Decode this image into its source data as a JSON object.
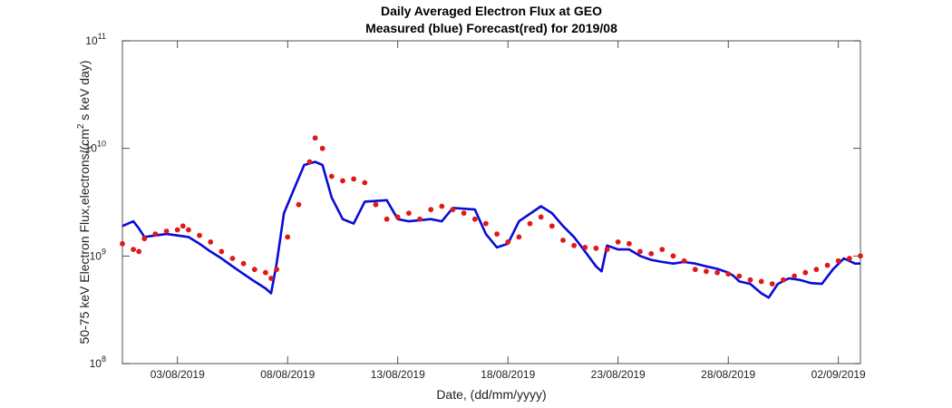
{
  "chart_data": {
    "type": "line",
    "title": "Daily Averaged Electron Flux at GEO",
    "subtitle": "Measured (blue) Forecast(red) for 2019/08",
    "xlabel": "Date, (dd/mm/yyyy)",
    "ylabel": {
      "prefix": "50-75 keV Electron Flux,electrons/(cm",
      "superscript": "2",
      "suffix": " s keV day)"
    },
    "x_range": [
      "2019-07-31T12:00",
      "2019-09-03T00:00"
    ],
    "y_scale": "log",
    "ylim": [
      100000000,
      100000000000
    ],
    "grid": false,
    "x_ticks": [
      {
        "date": "2019-08-03",
        "label": "03/08/2019"
      },
      {
        "date": "2019-08-08",
        "label": "08/08/2019"
      },
      {
        "date": "2019-08-13",
        "label": "13/08/2019"
      },
      {
        "date": "2019-08-18",
        "label": "18/08/2019"
      },
      {
        "date": "2019-08-23",
        "label": "23/08/2019"
      },
      {
        "date": "2019-08-28",
        "label": "28/08/2019"
      },
      {
        "date": "2019-09-02",
        "label": "02/09/2019"
      }
    ],
    "y_ticks": [
      {
        "value": 100000000,
        "base": "10",
        "exponent": "8"
      },
      {
        "value": 1000000000,
        "base": "10",
        "exponent": "9"
      },
      {
        "value": 10000000000,
        "base": "10",
        "exponent": "10"
      },
      {
        "value": 100000000000,
        "base": "10",
        "exponent": "11"
      }
    ],
    "series": [
      {
        "color": "#0a0ad8",
        "style": "line",
        "points": [
          [
            "2019-07-31T12:00",
            1900000000.0
          ],
          [
            "2019-08-01T00:00",
            2100000000.0
          ],
          [
            "2019-08-01T06:00",
            1800000000.0
          ],
          [
            "2019-08-01T12:00",
            1500000000.0
          ],
          [
            "2019-08-02T00:00",
            1550000000.0
          ],
          [
            "2019-08-02T12:00",
            1600000000.0
          ],
          [
            "2019-08-03T00:00",
            1550000000.0
          ],
          [
            "2019-08-03T12:00",
            1500000000.0
          ],
          [
            "2019-08-04T00:00",
            1300000000.0
          ],
          [
            "2019-08-04T12:00",
            1100000000.0
          ],
          [
            "2019-08-05T00:00",
            950000000.0
          ],
          [
            "2019-08-05T12:00",
            800000000.0
          ],
          [
            "2019-08-06T00:00",
            680000000.0
          ],
          [
            "2019-08-06T12:00",
            580000000.0
          ],
          [
            "2019-08-07T00:00",
            500000000.0
          ],
          [
            "2019-08-07T06:00",
            450000000.0
          ],
          [
            "2019-08-07T12:00",
            850000000.0
          ],
          [
            "2019-08-07T20:00",
            2500000000.0
          ],
          [
            "2019-08-08T06:00",
            4000000000.0
          ],
          [
            "2019-08-08T18:00",
            7000000000.0
          ],
          [
            "2019-08-09T06:00",
            7500000000.0
          ],
          [
            "2019-08-09T14:00",
            7000000000.0
          ],
          [
            "2019-08-10T00:00",
            3500000000.0
          ],
          [
            "2019-08-10T12:00",
            2200000000.0
          ],
          [
            "2019-08-11T00:00",
            2000000000.0
          ],
          [
            "2019-08-11T12:00",
            3200000000.0
          ],
          [
            "2019-08-12T12:00",
            3300000000.0
          ],
          [
            "2019-08-13T00:00",
            2200000000.0
          ],
          [
            "2019-08-13T12:00",
            2100000000.0
          ],
          [
            "2019-08-14T12:00",
            2200000000.0
          ],
          [
            "2019-08-15T00:00",
            2100000000.0
          ],
          [
            "2019-08-15T12:00",
            2800000000.0
          ],
          [
            "2019-08-16T12:00",
            2700000000.0
          ],
          [
            "2019-08-17T00:00",
            1600000000.0
          ],
          [
            "2019-08-17T12:00",
            1200000000.0
          ],
          [
            "2019-08-18T00:00",
            1300000000.0
          ],
          [
            "2019-08-18T12:00",
            2100000000.0
          ],
          [
            "2019-08-19T12:00",
            2900000000.0
          ],
          [
            "2019-08-20T00:00",
            2500000000.0
          ],
          [
            "2019-08-20T12:00",
            1900000000.0
          ],
          [
            "2019-08-21T00:00",
            1500000000.0
          ],
          [
            "2019-08-21T12:00",
            1100000000.0
          ],
          [
            "2019-08-22T00:00",
            800000000.0
          ],
          [
            "2019-08-22T06:00",
            720000000.0
          ],
          [
            "2019-08-22T12:00",
            1250000000.0
          ],
          [
            "2019-08-23T00:00",
            1150000000.0
          ],
          [
            "2019-08-23T12:00",
            1150000000.0
          ],
          [
            "2019-08-24T00:00",
            1000000000.0
          ],
          [
            "2019-08-24T12:00",
            920000000.0
          ],
          [
            "2019-08-25T00:00",
            880000000.0
          ],
          [
            "2019-08-25T12:00",
            850000000.0
          ],
          [
            "2019-08-26T00:00",
            880000000.0
          ],
          [
            "2019-08-26T12:00",
            850000000.0
          ],
          [
            "2019-08-27T00:00",
            800000000.0
          ],
          [
            "2019-08-27T12:00",
            760000000.0
          ],
          [
            "2019-08-28T00:00",
            700000000.0
          ],
          [
            "2019-08-28T06:00",
            650000000.0
          ],
          [
            "2019-08-28T12:00",
            580000000.0
          ],
          [
            "2019-08-29T00:00",
            550000000.0
          ],
          [
            "2019-08-29T12:00",
            450000000.0
          ],
          [
            "2019-08-29T20:00",
            410000000.0
          ],
          [
            "2019-08-30T06:00",
            550000000.0
          ],
          [
            "2019-08-30T18:00",
            620000000.0
          ],
          [
            "2019-08-31T06:00",
            600000000.0
          ],
          [
            "2019-08-31T18:00",
            560000000.0
          ],
          [
            "2019-09-01T06:00",
            550000000.0
          ],
          [
            "2019-09-01T18:00",
            750000000.0
          ],
          [
            "2019-09-02T06:00",
            950000000.0
          ],
          [
            "2019-09-02T18:00",
            850000000.0
          ],
          [
            "2019-09-03T00:00",
            850000000.0
          ]
        ]
      },
      {
        "color": "#e01818",
        "style": "markers",
        "points": [
          [
            "2019-07-31T12:00",
            1300000000.0
          ],
          [
            "2019-08-01T00:00",
            1150000000.0
          ],
          [
            "2019-08-01T06:00",
            1100000000.0
          ],
          [
            "2019-08-01T12:00",
            1450000000.0
          ],
          [
            "2019-08-02T00:00",
            1600000000.0
          ],
          [
            "2019-08-02T12:00",
            1700000000.0
          ],
          [
            "2019-08-03T00:00",
            1750000000.0
          ],
          [
            "2019-08-03T06:00",
            1900000000.0
          ],
          [
            "2019-08-03T12:00",
            1750000000.0
          ],
          [
            "2019-08-04T00:00",
            1550000000.0
          ],
          [
            "2019-08-04T12:00",
            1350000000.0
          ],
          [
            "2019-08-05T00:00",
            1100000000.0
          ],
          [
            "2019-08-05T12:00",
            950000000.0
          ],
          [
            "2019-08-06T00:00",
            850000000.0
          ],
          [
            "2019-08-06T12:00",
            750000000.0
          ],
          [
            "2019-08-07T00:00",
            700000000.0
          ],
          [
            "2019-08-07T06:00",
            620000000.0
          ],
          [
            "2019-08-07T12:00",
            750000000.0
          ],
          [
            "2019-08-08T00:00",
            1500000000.0
          ],
          [
            "2019-08-08T12:00",
            3000000000.0
          ],
          [
            "2019-08-09T00:00",
            7500000000.0
          ],
          [
            "2019-08-09T06:00",
            12500000000.0
          ],
          [
            "2019-08-09T14:00",
            10000000000.0
          ],
          [
            "2019-08-10T00:00",
            5500000000.0
          ],
          [
            "2019-08-10T12:00",
            5000000000.0
          ],
          [
            "2019-08-11T00:00",
            5200000000.0
          ],
          [
            "2019-08-11T12:00",
            4800000000.0
          ],
          [
            "2019-08-12T00:00",
            3000000000.0
          ],
          [
            "2019-08-12T12:00",
            2200000000.0
          ],
          [
            "2019-08-13T00:00",
            2300000000.0
          ],
          [
            "2019-08-13T12:00",
            2500000000.0
          ],
          [
            "2019-08-14T00:00",
            2200000000.0
          ],
          [
            "2019-08-14T12:00",
            2700000000.0
          ],
          [
            "2019-08-15T00:00",
            2900000000.0
          ],
          [
            "2019-08-15T12:00",
            2700000000.0
          ],
          [
            "2019-08-16T00:00",
            2500000000.0
          ],
          [
            "2019-08-16T12:00",
            2200000000.0
          ],
          [
            "2019-08-17T00:00",
            2000000000.0
          ],
          [
            "2019-08-17T12:00",
            1600000000.0
          ],
          [
            "2019-08-18T00:00",
            1350000000.0
          ],
          [
            "2019-08-18T12:00",
            1500000000.0
          ],
          [
            "2019-08-19T00:00",
            2000000000.0
          ],
          [
            "2019-08-19T12:00",
            2300000000.0
          ],
          [
            "2019-08-20T00:00",
            1900000000.0
          ],
          [
            "2019-08-20T12:00",
            1400000000.0
          ],
          [
            "2019-08-21T00:00",
            1250000000.0
          ],
          [
            "2019-08-21T12:00",
            1200000000.0
          ],
          [
            "2019-08-22T00:00",
            1180000000.0
          ],
          [
            "2019-08-22T12:00",
            1150000000.0
          ],
          [
            "2019-08-23T00:00",
            1350000000.0
          ],
          [
            "2019-08-23T12:00",
            1300000000.0
          ],
          [
            "2019-08-24T00:00",
            1100000000.0
          ],
          [
            "2019-08-24T12:00",
            1050000000.0
          ],
          [
            "2019-08-25T00:00",
            1150000000.0
          ],
          [
            "2019-08-25T12:00",
            1000000000.0
          ],
          [
            "2019-08-26T00:00",
            900000000.0
          ],
          [
            "2019-08-26T12:00",
            750000000.0
          ],
          [
            "2019-08-27T00:00",
            720000000.0
          ],
          [
            "2019-08-27T12:00",
            700000000.0
          ],
          [
            "2019-08-28T00:00",
            680000000.0
          ],
          [
            "2019-08-28T12:00",
            650000000.0
          ],
          [
            "2019-08-29T00:00",
            600000000.0
          ],
          [
            "2019-08-29T12:00",
            580000000.0
          ],
          [
            "2019-08-30T00:00",
            550000000.0
          ],
          [
            "2019-08-30T12:00",
            600000000.0
          ],
          [
            "2019-08-31T00:00",
            650000000.0
          ],
          [
            "2019-08-31T12:00",
            700000000.0
          ],
          [
            "2019-09-01T00:00",
            750000000.0
          ],
          [
            "2019-09-01T12:00",
            820000000.0
          ],
          [
            "2019-09-02T00:00",
            900000000.0
          ],
          [
            "2019-09-02T12:00",
            950000000.0
          ],
          [
            "2019-09-03T00:00",
            1000000000.0
          ]
        ]
      }
    ]
  }
}
